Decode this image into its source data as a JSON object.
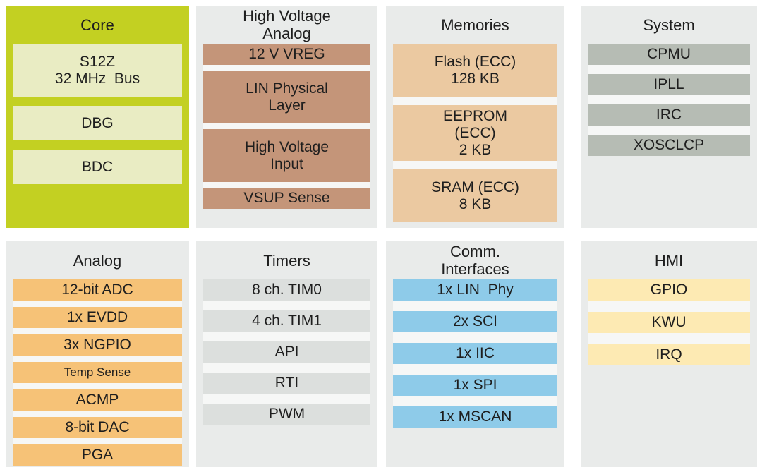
{
  "diagram": {
    "kind": "mcu-block-diagram",
    "text_color": "#1e1e1e",
    "gap_color": "#f6f7f6",
    "gray_panel_bg": "#e9ebea"
  },
  "panels": [
    {
      "id": "core",
      "title": "Core",
      "panel_bg": "#c3d022",
      "item_bg": "#e9ecc3",
      "items": [
        {
          "label": "S12Z\n32 MHz  Bus"
        },
        {
          "label": "DBG"
        },
        {
          "label": "BDC"
        }
      ]
    },
    {
      "id": "high-voltage-analog",
      "title": "High Voltage\nAnalog",
      "panel_bg": "#e9ebea",
      "item_bg": "#c49579",
      "items": [
        {
          "label": "12 V VREG"
        },
        {
          "label": "LIN Physical\nLayer"
        },
        {
          "label": "High Voltage\nInput"
        },
        {
          "label": "VSUP Sense"
        }
      ]
    },
    {
      "id": "memories",
      "title": "Memories",
      "panel_bg": "#e9ebea",
      "item_bg": "#ebc9a1",
      "items": [
        {
          "label": "Flash (ECC)\n128 KB"
        },
        {
          "label": "EEPROM\n(ECC)\n2 KB"
        },
        {
          "label": "SRAM (ECC)\n8 KB"
        }
      ]
    },
    {
      "id": "system",
      "title": "System",
      "panel_bg": "#e9ebea",
      "item_bg": "#b6bcb4",
      "items": [
        {
          "label": "CPMU"
        },
        {
          "label": "IPLL"
        },
        {
          "label": "IRC"
        },
        {
          "label": "XOSCLCP"
        }
      ]
    },
    {
      "id": "analog",
      "title": "Analog",
      "panel_bg": "#e9ebea",
      "item_bg": "#f6c277",
      "items": [
        {
          "label": "12-bit ADC"
        },
        {
          "label": "1x EVDD"
        },
        {
          "label": "3x NGPIO"
        },
        {
          "label": "Temp Sense",
          "small": true
        },
        {
          "label": "ACMP"
        },
        {
          "label": "8-bit DAC"
        },
        {
          "label": "PGA"
        }
      ]
    },
    {
      "id": "timers",
      "title": "Timers",
      "panel_bg": "#e9ebea",
      "item_bg": "#dcdfdd",
      "items": [
        {
          "label": "8 ch. TIM0"
        },
        {
          "label": "4 ch. TIM1"
        },
        {
          "label": "API"
        },
        {
          "label": "RTI"
        },
        {
          "label": "PWM"
        }
      ]
    },
    {
      "id": "comm-interfaces",
      "title": "Comm.\nInterfaces",
      "panel_bg": "#e9ebea",
      "item_bg": "#8ecbe9",
      "items": [
        {
          "label": "1x LIN  Phy"
        },
        {
          "label": "2x SCI"
        },
        {
          "label": "1x IIC"
        },
        {
          "label": "1x SPI"
        },
        {
          "label": "1x MSCAN"
        }
      ]
    },
    {
      "id": "hmi",
      "title": "HMI",
      "panel_bg": "#e9ebea",
      "item_bg": "#fdeab3",
      "items": [
        {
          "label": "GPIO"
        },
        {
          "label": "KWU"
        },
        {
          "label": "IRQ"
        }
      ]
    }
  ]
}
